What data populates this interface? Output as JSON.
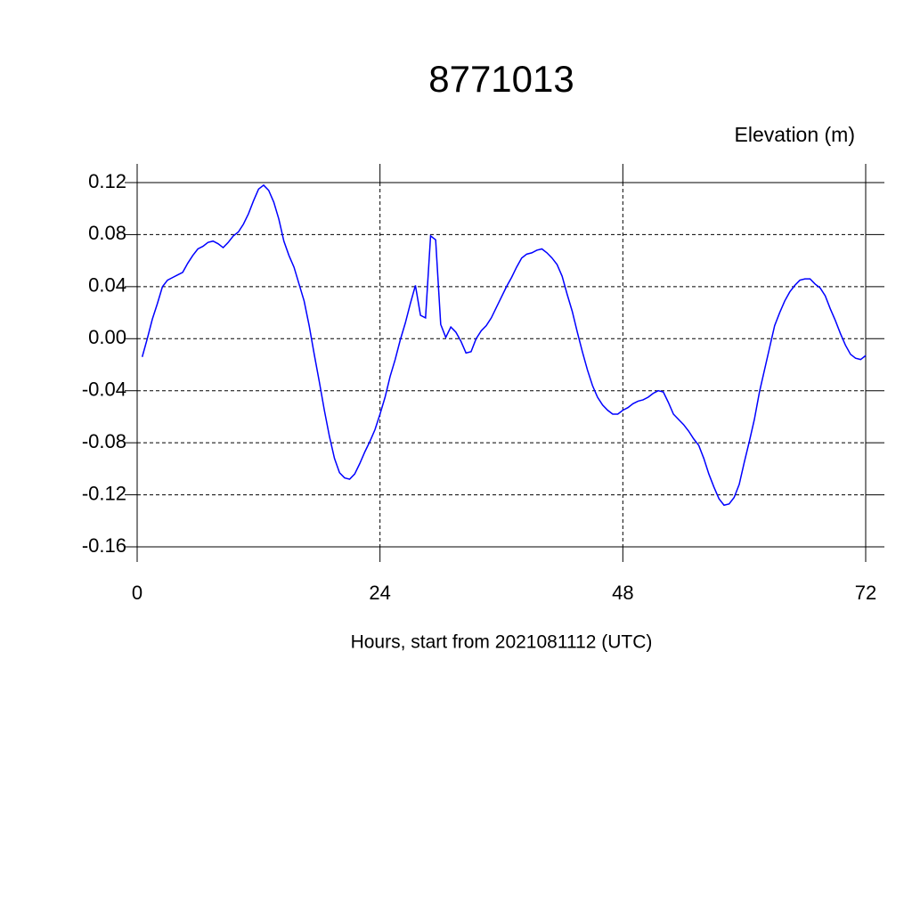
{
  "chart_data": {
    "type": "line",
    "title": "8771013",
    "subtitle": "Elevation (m)",
    "x_label": "Hours, start from 2021081112 (UTC)",
    "xlim": [
      0,
      72
    ],
    "xticks": [
      0,
      24,
      48,
      72
    ],
    "ylim": [
      -0.16,
      0.12
    ],
    "yticks": [
      0.12,
      0.08,
      0.04,
      {
        "value": 0,
        "label": "0.00"
      },
      -0.04,
      -0.08,
      -0.12,
      -0.16
    ],
    "grid": true,
    "series": [
      {
        "color": "#0000ff",
        "x": [
          0.5,
          1,
          1.5,
          2,
          2.5,
          3,
          3.5,
          4,
          4.5,
          5,
          5.5,
          6,
          6.5,
          7,
          7.5,
          8,
          8.5,
          9,
          9.5,
          10,
          10.5,
          11,
          11.5,
          12,
          12.5,
          13,
          13.5,
          14,
          14.5,
          15,
          15.5,
          16,
          16.5,
          17,
          17.5,
          18,
          18.5,
          19,
          19.5,
          20,
          20.5,
          21,
          21.5,
          22,
          22.5,
          23,
          23.5,
          24,
          24.5,
          25,
          25.5,
          26,
          26.5,
          27,
          27.5,
          28,
          28.5,
          29,
          29.5,
          30,
          30.5,
          31,
          31.5,
          32,
          32.5,
          33,
          33.5,
          34,
          34.5,
          35,
          35.5,
          36,
          36.5,
          37,
          37.5,
          38,
          38.5,
          39,
          39.5,
          40,
          40.5,
          41,
          41.5,
          42,
          42.5,
          43,
          43.5,
          44,
          44.5,
          45,
          45.5,
          46,
          46.5,
          47,
          47.5,
          48,
          48.5,
          49,
          49.5,
          50,
          50.5,
          51,
          51.5,
          52,
          52.5,
          53,
          53.5,
          54,
          54.5,
          55,
          55.5,
          56,
          56.5,
          57,
          57.5,
          58,
          58.5,
          59,
          59.5,
          60,
          60.5,
          61,
          61.5,
          62,
          62.5,
          63,
          63.5,
          64,
          64.5,
          65,
          65.5,
          66,
          66.5,
          67,
          67.5,
          68,
          68.5,
          69,
          69.5,
          70,
          70.5,
          71,
          71.5,
          72
        ],
        "values": [
          -0.014,
          0.0,
          0.015,
          0.027,
          0.04,
          0.045,
          0.047,
          0.049,
          0.051,
          0.058,
          0.064,
          0.069,
          0.071,
          0.074,
          0.075,
          0.073,
          0.07,
          0.074,
          0.079,
          0.082,
          0.088,
          0.096,
          0.106,
          0.115,
          0.118,
          0.114,
          0.105,
          0.092,
          0.075,
          0.064,
          0.055,
          0.042,
          0.029,
          0.01,
          -0.012,
          -0.033,
          -0.055,
          -0.075,
          -0.092,
          -0.103,
          -0.107,
          -0.108,
          -0.104,
          -0.096,
          -0.087,
          -0.079,
          -0.07,
          -0.058,
          -0.045,
          -0.029,
          -0.016,
          -0.001,
          0.012,
          0.027,
          0.041,
          0.018,
          0.016,
          0.079,
          0.076,
          0.011,
          0.001,
          0.009,
          0.005,
          -0.002,
          -0.011,
          -0.01,
          0.0,
          0.006,
          0.01,
          0.016,
          0.024,
          0.032,
          0.04,
          0.047,
          0.055,
          0.062,
          0.065,
          0.066,
          0.068,
          0.069,
          0.066,
          0.062,
          0.057,
          0.048,
          0.034,
          0.021,
          0.005,
          -0.01,
          -0.024,
          -0.036,
          -0.045,
          -0.051,
          -0.055,
          -0.058,
          -0.058,
          -0.055,
          -0.053,
          -0.05,
          -0.048,
          -0.047,
          -0.045,
          -0.042,
          -0.04,
          -0.041,
          -0.049,
          -0.058,
          -0.062,
          -0.066,
          -0.071,
          -0.077,
          -0.082,
          -0.092,
          -0.104,
          -0.114,
          -0.123,
          -0.128,
          -0.127,
          -0.122,
          -0.112,
          -0.095,
          -0.079,
          -0.062,
          -0.041,
          -0.024,
          -0.007,
          0.01,
          0.02,
          0.029,
          0.036,
          0.041,
          0.045,
          0.046,
          0.046,
          0.042,
          0.039,
          0.033,
          0.023,
          0.014,
          0.004,
          -0.005,
          -0.012,
          -0.015,
          -0.016,
          -0.013
        ]
      }
    ]
  }
}
